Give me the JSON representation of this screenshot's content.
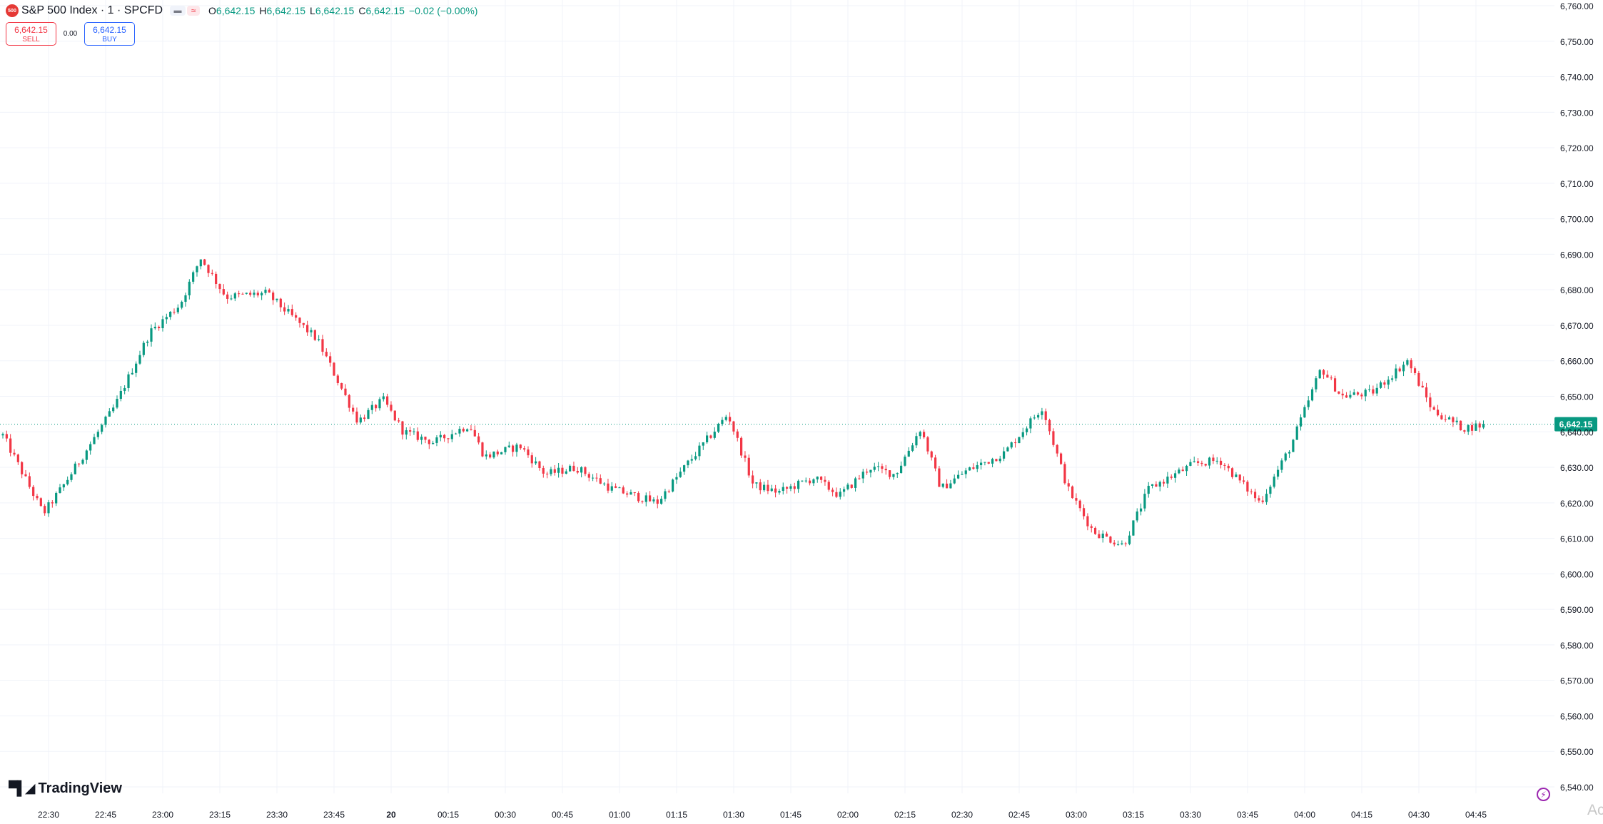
{
  "header": {
    "symbol_badge": "500",
    "title": "S&P 500 Index · 1 · SPCFD",
    "ohlc": [
      {
        "key": "O",
        "value": "6,642.15"
      },
      {
        "key": "H",
        "value": "6,642.15"
      },
      {
        "key": "L",
        "value": "6,642.15"
      },
      {
        "key": "C",
        "value": "6,642.15"
      }
    ],
    "change": "−0.02 (−0.00%)",
    "eye_icon": "eye-icon",
    "wave_icon": "wave-icon"
  },
  "trade": {
    "sell_price": "6,642.15",
    "sell_label": "SELL",
    "spread": "0.00",
    "buy_price": "6,642.15",
    "buy_label": "BUY"
  },
  "branding": {
    "logo_text": "TradingView",
    "logo_icon": "tradingview-logo-icon"
  },
  "footer": {
    "bolt_icon": "lightning-icon",
    "watermark": "Activ"
  },
  "colors": {
    "up": "#089981",
    "down": "#f23645",
    "last_price_line": "#089981",
    "grid": "#f0f3fa"
  },
  "chart_data": {
    "type": "candlestick",
    "title": "",
    "xlabel": "",
    "ylabel": "",
    "ylim": [
      6535,
      6762
    ],
    "y_ticks": [
      "6,760.00",
      "6,750.00",
      "6,740.00",
      "6,730.00",
      "6,720.00",
      "6,710.00",
      "6,700.00",
      "6,690.00",
      "6,680.00",
      "6,670.00",
      "6,660.00",
      "6,650.00",
      "6,640.00",
      "6,630.00",
      "6,620.00",
      "6,610.00",
      "6,600.00",
      "6,590.00",
      "6,580.00",
      "6,570.00",
      "6,560.00",
      "6,550.00",
      "6,540.00"
    ],
    "x_ticks": [
      "22:30",
      "22:45",
      "23:00",
      "23:15",
      "23:30",
      "23:45",
      "20",
      "00:15",
      "00:30",
      "00:45",
      "01:00",
      "01:15",
      "01:30",
      "01:45",
      "02:00",
      "02:15",
      "02:30",
      "02:45",
      "03:00",
      "03:15",
      "03:30",
      "03:45",
      "04:00",
      "04:15",
      "04:30",
      "04:45"
    ],
    "last_price": 6642.15,
    "last_price_label": "6,642.15",
    "grid": true,
    "candle_count": 390,
    "path_anchors": [
      [
        0,
        6639
      ],
      [
        16,
        6617
      ],
      [
        24,
        6625
      ],
      [
        44,
        6647
      ],
      [
        58,
        6668
      ],
      [
        70,
        6676
      ],
      [
        78,
        6689
      ],
      [
        88,
        6678
      ],
      [
        104,
        6679
      ],
      [
        124,
        6666
      ],
      [
        140,
        6643
      ],
      [
        150,
        6649
      ],
      [
        158,
        6640
      ],
      [
        170,
        6637
      ],
      [
        184,
        6642
      ],
      [
        190,
        6633
      ],
      [
        204,
        6636
      ],
      [
        214,
        6628
      ],
      [
        226,
        6630
      ],
      [
        240,
        6624
      ],
      [
        258,
        6620
      ],
      [
        270,
        6631
      ],
      [
        286,
        6645
      ],
      [
        296,
        6625
      ],
      [
        306,
        6623
      ],
      [
        320,
        6627
      ],
      [
        330,
        6622
      ],
      [
        342,
        6630
      ],
      [
        352,
        6628
      ],
      [
        362,
        6641
      ],
      [
        370,
        6624
      ],
      [
        380,
        6629
      ],
      [
        395,
        6634
      ],
      [
        410,
        6647
      ],
      [
        420,
        6624
      ],
      [
        430,
        6612
      ],
      [
        442,
        6608
      ],
      [
        452,
        6624
      ],
      [
        470,
        6631
      ],
      [
        480,
        6632
      ],
      [
        496,
        6620
      ],
      [
        508,
        6636
      ],
      [
        520,
        6658
      ],
      [
        528,
        6650
      ],
      [
        540,
        6651
      ],
      [
        554,
        6660
      ],
      [
        564,
        6646
      ],
      [
        576,
        6641
      ],
      [
        584,
        6642
      ]
    ]
  }
}
